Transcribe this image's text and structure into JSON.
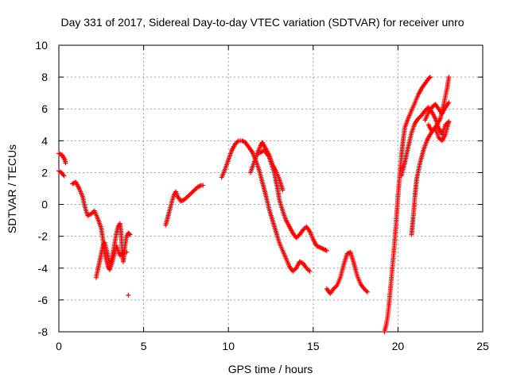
{
  "chart_data": {
    "type": "scatter",
    "title": "Day 331 of 2017, Sidereal Day-to-day VTEC variation (SDTVAR) for receiver unro",
    "xlabel": "GPS time / hours",
    "ylabel": "SDTVAR / TECUs",
    "xlim": [
      0,
      25
    ],
    "ylim": [
      -8,
      10
    ],
    "xticks": [
      0,
      5,
      10,
      15,
      20,
      25
    ],
    "yticks": [
      -8,
      -6,
      -4,
      -2,
      0,
      2,
      4,
      6,
      8,
      10
    ],
    "grid": true,
    "marker": "+",
    "color": "#ff0000",
    "series": [
      {
        "name": "arc-a1",
        "points": [
          [
            0.0,
            3.2
          ],
          [
            0.2,
            3.1
          ],
          [
            0.35,
            2.8
          ],
          [
            0.4,
            2.6
          ]
        ]
      },
      {
        "name": "arc-a2",
        "points": [
          [
            0.0,
            2.1
          ],
          [
            0.15,
            2.0
          ],
          [
            0.3,
            1.8
          ]
        ]
      },
      {
        "name": "arc-b",
        "points": [
          [
            0.8,
            1.3
          ],
          [
            1.0,
            1.4
          ],
          [
            1.2,
            1.0
          ],
          [
            1.4,
            0.5
          ],
          [
            1.5,
            0.0
          ],
          [
            1.6,
            -0.4
          ],
          [
            1.7,
            -0.7
          ],
          [
            1.9,
            -0.6
          ],
          [
            2.1,
            -0.4
          ],
          [
            2.3,
            -0.9
          ],
          [
            2.5,
            -1.5
          ],
          [
            2.6,
            -2.2
          ],
          [
            2.7,
            -3.0
          ],
          [
            2.8,
            -3.5
          ],
          [
            2.9,
            -3.9
          ],
          [
            3.0,
            -4.1
          ],
          [
            3.1,
            -3.8
          ],
          [
            3.2,
            -3.4
          ],
          [
            3.3,
            -3.0
          ],
          [
            3.4,
            -2.6
          ],
          [
            3.5,
            -2.9
          ],
          [
            3.6,
            -3.2
          ],
          [
            3.8,
            -3.0
          ],
          [
            4.0,
            -3.0
          ]
        ]
      },
      {
        "name": "arc-c",
        "points": [
          [
            2.2,
            -4.6
          ],
          [
            2.3,
            -4.1
          ],
          [
            2.4,
            -3.6
          ],
          [
            2.5,
            -3.1
          ],
          [
            2.6,
            -2.6
          ],
          [
            2.7,
            -2.4
          ],
          [
            2.8,
            -2.8
          ],
          [
            2.9,
            -3.3
          ],
          [
            3.0,
            -3.7
          ],
          [
            3.1,
            -3.5
          ],
          [
            3.2,
            -3.0
          ],
          [
            3.3,
            -2.4
          ],
          [
            3.4,
            -1.8
          ],
          [
            3.5,
            -1.4
          ],
          [
            3.6,
            -1.2
          ],
          [
            3.65,
            -1.6
          ],
          [
            3.7,
            -2.3
          ],
          [
            3.75,
            -3.1
          ],
          [
            3.8,
            -3.6
          ],
          [
            3.9,
            -2.6
          ],
          [
            4.0,
            -2.0
          ],
          [
            4.1,
            -1.8
          ],
          [
            4.2,
            -1.9
          ]
        ]
      },
      {
        "name": "outlier",
        "points": [
          [
            4.1,
            -5.7
          ]
        ]
      },
      {
        "name": "arc-d",
        "points": [
          [
            6.3,
            -1.3
          ],
          [
            6.4,
            -0.9
          ],
          [
            6.5,
            -0.5
          ],
          [
            6.6,
            -0.1
          ],
          [
            6.7,
            0.3
          ],
          [
            6.8,
            0.6
          ],
          [
            6.9,
            0.8
          ],
          [
            7.0,
            0.5
          ],
          [
            7.2,
            0.2
          ],
          [
            7.4,
            0.3
          ],
          [
            7.6,
            0.5
          ],
          [
            7.8,
            0.7
          ],
          [
            8.0,
            0.9
          ],
          [
            8.2,
            1.1
          ],
          [
            8.4,
            1.2
          ],
          [
            8.5,
            1.2
          ]
        ]
      },
      {
        "name": "arc-e",
        "points": [
          [
            9.6,
            1.7
          ],
          [
            9.8,
            2.2
          ],
          [
            10.0,
            2.8
          ],
          [
            10.2,
            3.4
          ],
          [
            10.4,
            3.8
          ],
          [
            10.6,
            4.0
          ],
          [
            10.8,
            4.0
          ],
          [
            11.0,
            3.9
          ],
          [
            11.2,
            3.6
          ],
          [
            11.4,
            3.3
          ],
          [
            11.6,
            2.8
          ],
          [
            11.8,
            2.2
          ],
          [
            12.0,
            1.4
          ],
          [
            12.2,
            0.6
          ],
          [
            12.4,
            -0.3
          ],
          [
            12.6,
            -1.0
          ],
          [
            12.8,
            -1.7
          ],
          [
            13.0,
            -2.4
          ],
          [
            13.2,
            -2.9
          ],
          [
            13.4,
            -3.4
          ],
          [
            13.6,
            -3.9
          ],
          [
            13.8,
            -4.2
          ],
          [
            14.0,
            -4.0
          ],
          [
            14.2,
            -3.6
          ],
          [
            14.4,
            -3.7
          ],
          [
            14.6,
            -4.0
          ],
          [
            14.8,
            -4.2
          ]
        ]
      },
      {
        "name": "arc-f",
        "points": [
          [
            11.3,
            2.0
          ],
          [
            11.5,
            2.6
          ],
          [
            11.7,
            3.2
          ],
          [
            11.9,
            3.7
          ],
          [
            12.0,
            3.9
          ],
          [
            12.2,
            3.5
          ],
          [
            12.4,
            3.1
          ],
          [
            12.6,
            2.5
          ],
          [
            12.8,
            2.1
          ],
          [
            13.0,
            1.6
          ],
          [
            13.2,
            0.9
          ]
        ]
      },
      {
        "name": "arc-g",
        "points": [
          [
            11.8,
            3.2
          ],
          [
            12.1,
            3.4
          ],
          [
            12.4,
            3.0
          ],
          [
            12.7,
            2.0
          ],
          [
            12.9,
            1.0
          ],
          [
            13.0,
            0.3
          ],
          [
            13.2,
            -0.4
          ],
          [
            13.4,
            -1.0
          ],
          [
            13.6,
            -1.4
          ],
          [
            13.8,
            -1.8
          ],
          [
            14.0,
            -2.1
          ],
          [
            14.2,
            -1.9
          ],
          [
            14.4,
            -1.6
          ],
          [
            14.6,
            -1.4
          ],
          [
            14.8,
            -1.7
          ],
          [
            15.0,
            -2.2
          ],
          [
            15.2,
            -2.6
          ],
          [
            15.4,
            -2.7
          ],
          [
            15.6,
            -2.8
          ],
          [
            15.8,
            -2.9
          ]
        ]
      },
      {
        "name": "arc-h",
        "points": [
          [
            15.8,
            -5.3
          ],
          [
            16.0,
            -5.6
          ],
          [
            16.2,
            -5.3
          ],
          [
            16.4,
            -5.1
          ],
          [
            16.6,
            -4.6
          ],
          [
            16.8,
            -3.8
          ],
          [
            17.0,
            -3.1
          ],
          [
            17.2,
            -3.0
          ],
          [
            17.4,
            -3.7
          ],
          [
            17.6,
            -4.5
          ],
          [
            17.8,
            -5.0
          ],
          [
            18.0,
            -5.3
          ],
          [
            18.2,
            -5.5
          ]
        ]
      },
      {
        "name": "arc-i",
        "points": [
          [
            19.2,
            -8.0
          ],
          [
            19.3,
            -7.6
          ],
          [
            19.4,
            -7.0
          ],
          [
            19.5,
            -6.0
          ],
          [
            19.6,
            -4.8
          ],
          [
            19.7,
            -3.6
          ],
          [
            19.8,
            -2.4
          ],
          [
            19.9,
            -1.0
          ],
          [
            20.0,
            0.5
          ],
          [
            20.1,
            1.8
          ],
          [
            20.2,
            3.0
          ],
          [
            20.3,
            4.0
          ],
          [
            20.4,
            4.8
          ],
          [
            20.6,
            5.4
          ],
          [
            20.8,
            5.9
          ],
          [
            21.0,
            6.4
          ],
          [
            21.2,
            6.9
          ],
          [
            21.4,
            7.3
          ],
          [
            21.6,
            7.6
          ],
          [
            21.8,
            7.9
          ],
          [
            21.9,
            8.0
          ]
        ]
      },
      {
        "name": "arc-j",
        "points": [
          [
            20.2,
            1.8
          ],
          [
            20.4,
            2.6
          ],
          [
            20.6,
            3.6
          ],
          [
            20.8,
            4.5
          ],
          [
            21.0,
            5.1
          ],
          [
            21.2,
            5.4
          ],
          [
            21.4,
            5.6
          ],
          [
            21.6,
            5.9
          ],
          [
            21.8,
            6.1
          ],
          [
            22.0,
            5.8
          ],
          [
            22.2,
            5.4
          ],
          [
            22.4,
            4.8
          ],
          [
            22.6,
            4.4
          ],
          [
            22.8,
            5.0
          ],
          [
            23.0,
            5.2
          ]
        ]
      },
      {
        "name": "arc-k",
        "points": [
          [
            20.8,
            -1.9
          ],
          [
            20.9,
            -0.8
          ],
          [
            21.0,
            0.5
          ],
          [
            21.1,
            1.6
          ],
          [
            21.3,
            2.6
          ],
          [
            21.5,
            3.4
          ],
          [
            21.7,
            4.0
          ],
          [
            21.9,
            4.4
          ],
          [
            22.1,
            4.7
          ],
          [
            22.3,
            5.0
          ],
          [
            22.5,
            5.4
          ],
          [
            22.7,
            6.3
          ],
          [
            22.9,
            7.3
          ],
          [
            23.0,
            8.0
          ]
        ]
      },
      {
        "name": "arc-l",
        "points": [
          [
            21.6,
            5.3
          ],
          [
            21.8,
            5.8
          ],
          [
            22.0,
            6.1
          ],
          [
            22.2,
            6.3
          ],
          [
            22.4,
            6.0
          ],
          [
            22.6,
            5.7
          ],
          [
            22.8,
            6.1
          ],
          [
            23.0,
            6.4
          ]
        ]
      },
      {
        "name": "arc-m",
        "points": [
          [
            21.8,
            5.0
          ],
          [
            22.0,
            4.6
          ],
          [
            22.2,
            4.8
          ],
          [
            22.4,
            4.2
          ],
          [
            22.6,
            4.0
          ],
          [
            22.8,
            4.4
          ],
          [
            23.0,
            5.2
          ]
        ]
      }
    ]
  }
}
